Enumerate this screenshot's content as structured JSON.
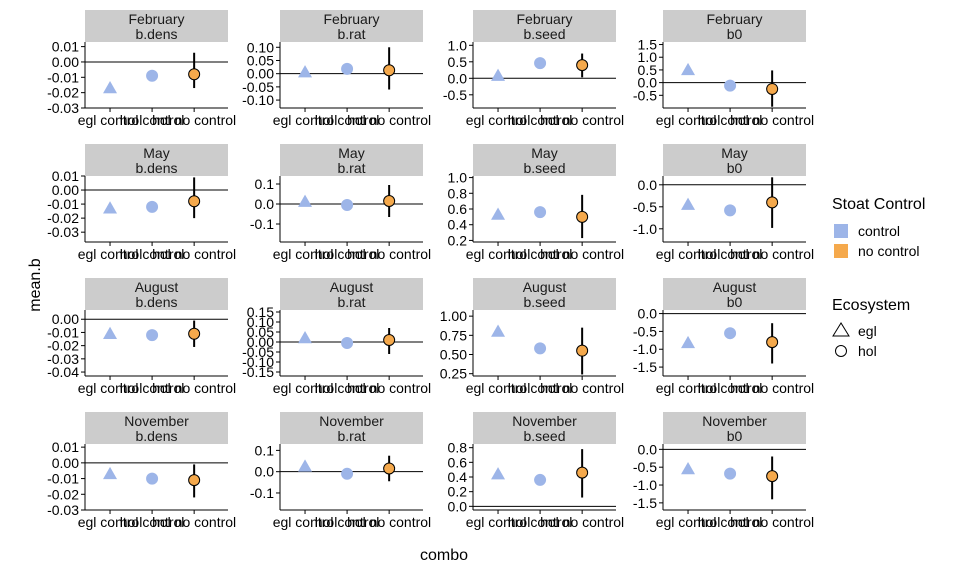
{
  "chart_data": {
    "type": "scatter",
    "xlabel": "combo",
    "ylabel": "mean.b",
    "x_categories": [
      "egl control",
      "hol control",
      "hol no control"
    ],
    "legend": {
      "placement": "right",
      "fill": {
        "title": "Stoat Control",
        "entries": [
          {
            "label": "control",
            "color": "#9db5e8"
          },
          {
            "label": "no control",
            "color": "#f5a94c"
          }
        ]
      },
      "shape": {
        "title": "Ecosystem",
        "entries": [
          {
            "label": "egl",
            "shape": "triangle"
          },
          {
            "label": "hol",
            "shape": "circle"
          }
        ]
      }
    },
    "panels": [
      {
        "row": 0,
        "col": 0,
        "strip": [
          "February",
          "b.dens"
        ],
        "ylim": [
          -0.03,
          0.013
        ],
        "yticks": [
          "0.01",
          "0.00",
          "-0.01",
          "-0.02",
          "-0.03"
        ],
        "ytick_values": [
          0.01,
          0,
          -0.01,
          -0.02,
          -0.03
        ],
        "ref": 0,
        "points": [
          {
            "x": 0,
            "y": -0.017,
            "eco": "egl",
            "ctrl": "control"
          },
          {
            "x": 1,
            "y": -0.009,
            "eco": "hol",
            "ctrl": "control"
          },
          {
            "x": 2,
            "y": -0.008,
            "lo": -0.017,
            "hi": 0.006,
            "eco": "hol",
            "ctrl": "no control"
          }
        ]
      },
      {
        "row": 0,
        "col": 1,
        "strip": [
          "February",
          "b.rat"
        ],
        "ylim": [
          -0.13,
          0.12
        ],
        "yticks": [
          "0.10",
          "0.05",
          "0.00",
          "-0.05",
          "-0.10"
        ],
        "ytick_values": [
          0.1,
          0.05,
          0,
          -0.05,
          -0.1
        ],
        "ref": 0,
        "points": [
          {
            "x": 0,
            "y": 0.006,
            "eco": "egl",
            "ctrl": "control"
          },
          {
            "x": 1,
            "y": 0.018,
            "eco": "hol",
            "ctrl": "control"
          },
          {
            "x": 2,
            "y": 0.013,
            "lo": -0.06,
            "hi": 0.1,
            "eco": "hol",
            "ctrl": "no control"
          }
        ]
      },
      {
        "row": 0,
        "col": 2,
        "strip": [
          "February",
          "b.seed"
        ],
        "ylim": [
          -0.9,
          1.1
        ],
        "yticks": [
          "1.0",
          "0.5",
          "0.0",
          "-0.5"
        ],
        "ytick_values": [
          1,
          0.5,
          0,
          -0.5
        ],
        "ref": 0,
        "points": [
          {
            "x": 0,
            "y": 0.08,
            "eco": "egl",
            "ctrl": "control"
          },
          {
            "x": 1,
            "y": 0.46,
            "eco": "hol",
            "ctrl": "control"
          },
          {
            "x": 2,
            "y": 0.4,
            "lo": 0.03,
            "hi": 0.75,
            "eco": "hol",
            "ctrl": "no control"
          }
        ]
      },
      {
        "row": 0,
        "col": 3,
        "strip": [
          "February",
          "b0"
        ],
        "ylim": [
          -1.0,
          1.6
        ],
        "yticks": [
          "1.5",
          "1.0",
          "0.5",
          "0.0",
          "-0.5"
        ],
        "ytick_values": [
          1.5,
          1,
          0.5,
          0,
          -0.5
        ],
        "ref": 0,
        "points": [
          {
            "x": 0,
            "y": 0.5,
            "eco": "egl",
            "ctrl": "control"
          },
          {
            "x": 1,
            "y": -0.12,
            "eco": "hol",
            "ctrl": "control"
          },
          {
            "x": 2,
            "y": -0.25,
            "lo": -0.95,
            "hi": 0.48,
            "eco": "hol",
            "ctrl": "no control"
          }
        ]
      },
      {
        "row": 1,
        "col": 0,
        "strip": [
          "May",
          "b.dens"
        ],
        "ylim": [
          -0.037,
          0.01
        ],
        "yticks": [
          "0.01",
          "0.00",
          "-0.01",
          "-0.02",
          "-0.03"
        ],
        "ytick_values": [
          0.01,
          0,
          -0.01,
          -0.02,
          -0.03
        ],
        "ref": 0,
        "points": [
          {
            "x": 0,
            "y": -0.013,
            "eco": "egl",
            "ctrl": "control"
          },
          {
            "x": 1,
            "y": -0.012,
            "eco": "hol",
            "ctrl": "control"
          },
          {
            "x": 2,
            "y": -0.008,
            "lo": -0.02,
            "hi": 0.009,
            "eco": "hol",
            "ctrl": "no control"
          }
        ]
      },
      {
        "row": 1,
        "col": 1,
        "strip": [
          "May",
          "b.rat"
        ],
        "ylim": [
          -0.19,
          0.14
        ],
        "yticks": [
          "0.1",
          "0.0",
          "-0.1"
        ],
        "ytick_values": [
          0.1,
          0,
          -0.1
        ],
        "ref": 0,
        "points": [
          {
            "x": 0,
            "y": 0.012,
            "eco": "egl",
            "ctrl": "control"
          },
          {
            "x": 1,
            "y": -0.005,
            "eco": "hol",
            "ctrl": "control"
          },
          {
            "x": 2,
            "y": 0.015,
            "lo": -0.065,
            "hi": 0.095,
            "eco": "hol",
            "ctrl": "no control"
          }
        ]
      },
      {
        "row": 1,
        "col": 2,
        "strip": [
          "May",
          "b.seed"
        ],
        "ylim": [
          0.18,
          1.02
        ],
        "yticks": [
          "1.0",
          "0.8",
          "0.6",
          "0.4",
          "0.2"
        ],
        "ytick_values": [
          1,
          0.8,
          0.6,
          0.4,
          0.2
        ],
        "ref": null,
        "points": [
          {
            "x": 0,
            "y": 0.53,
            "eco": "egl",
            "ctrl": "control"
          },
          {
            "x": 1,
            "y": 0.56,
            "eco": "hol",
            "ctrl": "control"
          },
          {
            "x": 2,
            "y": 0.5,
            "lo": 0.23,
            "hi": 0.78,
            "eco": "hol",
            "ctrl": "no control"
          }
        ]
      },
      {
        "row": 1,
        "col": 3,
        "strip": [
          "May",
          "b0"
        ],
        "ylim": [
          -1.3,
          0.2
        ],
        "yticks": [
          "0.0",
          "-0.5",
          "-1.0"
        ],
        "ytick_values": [
          0,
          -0.5,
          -1
        ],
        "ref": 0,
        "points": [
          {
            "x": 0,
            "y": -0.45,
            "eco": "egl",
            "ctrl": "control"
          },
          {
            "x": 1,
            "y": -0.58,
            "eco": "hol",
            "ctrl": "control"
          },
          {
            "x": 2,
            "y": -0.4,
            "lo": -0.98,
            "hi": 0.17,
            "eco": "hol",
            "ctrl": "no control"
          }
        ]
      },
      {
        "row": 2,
        "col": 0,
        "strip": [
          "August",
          "b.dens"
        ],
        "ylim": [
          -0.043,
          0.007
        ],
        "yticks": [
          "0.00",
          "-0.01",
          "-0.02",
          "-0.03",
          "-0.04"
        ],
        "ytick_values": [
          0,
          -0.01,
          -0.02,
          -0.03,
          -0.04
        ],
        "ref": 0,
        "points": [
          {
            "x": 0,
            "y": -0.011,
            "eco": "egl",
            "ctrl": "control"
          },
          {
            "x": 1,
            "y": -0.012,
            "eco": "hol",
            "ctrl": "control"
          },
          {
            "x": 2,
            "y": -0.011,
            "lo": -0.021,
            "hi": -0.001,
            "eco": "hol",
            "ctrl": "no control"
          }
        ]
      },
      {
        "row": 2,
        "col": 1,
        "strip": [
          "August",
          "b.rat"
        ],
        "ylim": [
          -0.17,
          0.16
        ],
        "yticks": [
          "0.15",
          "0.10",
          "0.05",
          "0.00",
          "-0.05",
          "-0.10",
          "-0.15"
        ],
        "ytick_values": [
          0.15,
          0.1,
          0.05,
          0,
          -0.05,
          -0.1,
          -0.15
        ],
        "ref": 0,
        "points": [
          {
            "x": 0,
            "y": 0.02,
            "eco": "egl",
            "ctrl": "control"
          },
          {
            "x": 1,
            "y": -0.005,
            "eco": "hol",
            "ctrl": "control"
          },
          {
            "x": 2,
            "y": 0.01,
            "lo": -0.06,
            "hi": 0.07,
            "eco": "hol",
            "ctrl": "no control"
          }
        ]
      },
      {
        "row": 2,
        "col": 2,
        "strip": [
          "August",
          "b.seed"
        ],
        "ylim": [
          0.22,
          1.08
        ],
        "yticks": [
          "1.00",
          "0.75",
          "0.50",
          "0.25"
        ],
        "ytick_values": [
          1,
          0.75,
          0.5,
          0.25
        ],
        "ref": null,
        "points": [
          {
            "x": 0,
            "y": 0.8,
            "eco": "egl",
            "ctrl": "control"
          },
          {
            "x": 1,
            "y": 0.58,
            "eco": "hol",
            "ctrl": "control"
          },
          {
            "x": 2,
            "y": 0.55,
            "lo": 0.24,
            "hi": 0.85,
            "eco": "hol",
            "ctrl": "no control"
          }
        ]
      },
      {
        "row": 2,
        "col": 3,
        "strip": [
          "August",
          "b0"
        ],
        "ylim": [
          -1.75,
          0.1
        ],
        "yticks": [
          "0.0",
          "-0.5",
          "-1.0",
          "-1.5"
        ],
        "ytick_values": [
          0,
          -0.5,
          -1,
          -1.5
        ],
        "ref": 0,
        "points": [
          {
            "x": 0,
            "y": -0.82,
            "eco": "egl",
            "ctrl": "control"
          },
          {
            "x": 1,
            "y": -0.55,
            "eco": "hol",
            "ctrl": "control"
          },
          {
            "x": 2,
            "y": -0.8,
            "lo": -1.4,
            "hi": -0.27,
            "eco": "hol",
            "ctrl": "no control"
          }
        ]
      },
      {
        "row": 3,
        "col": 0,
        "strip": [
          "November",
          "b.dens"
        ],
        "ylim": [
          -0.03,
          0.012
        ],
        "yticks": [
          "0.01",
          "0.00",
          "-0.01",
          "-0.02",
          "-0.03"
        ],
        "ytick_values": [
          0.01,
          0,
          -0.01,
          -0.02,
          -0.03
        ],
        "ref": 0,
        "points": [
          {
            "x": 0,
            "y": -0.007,
            "eco": "egl",
            "ctrl": "control"
          },
          {
            "x": 1,
            "y": -0.01,
            "eco": "hol",
            "ctrl": "control"
          },
          {
            "x": 2,
            "y": -0.011,
            "lo": -0.022,
            "hi": -0.001,
            "eco": "hol",
            "ctrl": "no control"
          }
        ]
      },
      {
        "row": 3,
        "col": 1,
        "strip": [
          "November",
          "b.rat"
        ],
        "ylim": [
          -0.18,
          0.13
        ],
        "yticks": [
          "0.1",
          "0.0",
          "-0.1"
        ],
        "ytick_values": [
          0.1,
          0,
          -0.1
        ],
        "ref": 0,
        "points": [
          {
            "x": 0,
            "y": 0.025,
            "eco": "egl",
            "ctrl": "control"
          },
          {
            "x": 1,
            "y": -0.01,
            "eco": "hol",
            "ctrl": "control"
          },
          {
            "x": 2,
            "y": 0.015,
            "lo": -0.045,
            "hi": 0.075,
            "eco": "hol",
            "ctrl": "no control"
          }
        ]
      },
      {
        "row": 3,
        "col": 2,
        "strip": [
          "November",
          "b.seed"
        ],
        "ylim": [
          -0.05,
          0.85
        ],
        "yticks": [
          "0.8",
          "0.6",
          "0.4",
          "0.2",
          "0.0"
        ],
        "ytick_values": [
          0.8,
          0.6,
          0.4,
          0.2,
          0
        ],
        "ref": 0,
        "points": [
          {
            "x": 0,
            "y": 0.44,
            "eco": "egl",
            "ctrl": "control"
          },
          {
            "x": 1,
            "y": 0.36,
            "eco": "hol",
            "ctrl": "control"
          },
          {
            "x": 2,
            "y": 0.46,
            "lo": 0.12,
            "hi": 0.78,
            "eco": "hol",
            "ctrl": "no control"
          }
        ]
      },
      {
        "row": 3,
        "col": 3,
        "strip": [
          "November",
          "b0"
        ],
        "ylim": [
          -1.7,
          0.15
        ],
        "yticks": [
          "0.0",
          "-0.5",
          "-1.0",
          "-1.5"
        ],
        "ytick_values": [
          0,
          -0.5,
          -1,
          -1.5
        ],
        "ref": 0,
        "points": [
          {
            "x": 0,
            "y": -0.55,
            "eco": "egl",
            "ctrl": "control"
          },
          {
            "x": 1,
            "y": -0.68,
            "eco": "hol",
            "ctrl": "control"
          },
          {
            "x": 2,
            "y": -0.75,
            "lo": -1.4,
            "hi": -0.2,
            "eco": "hol",
            "ctrl": "no control"
          }
        ]
      }
    ]
  }
}
